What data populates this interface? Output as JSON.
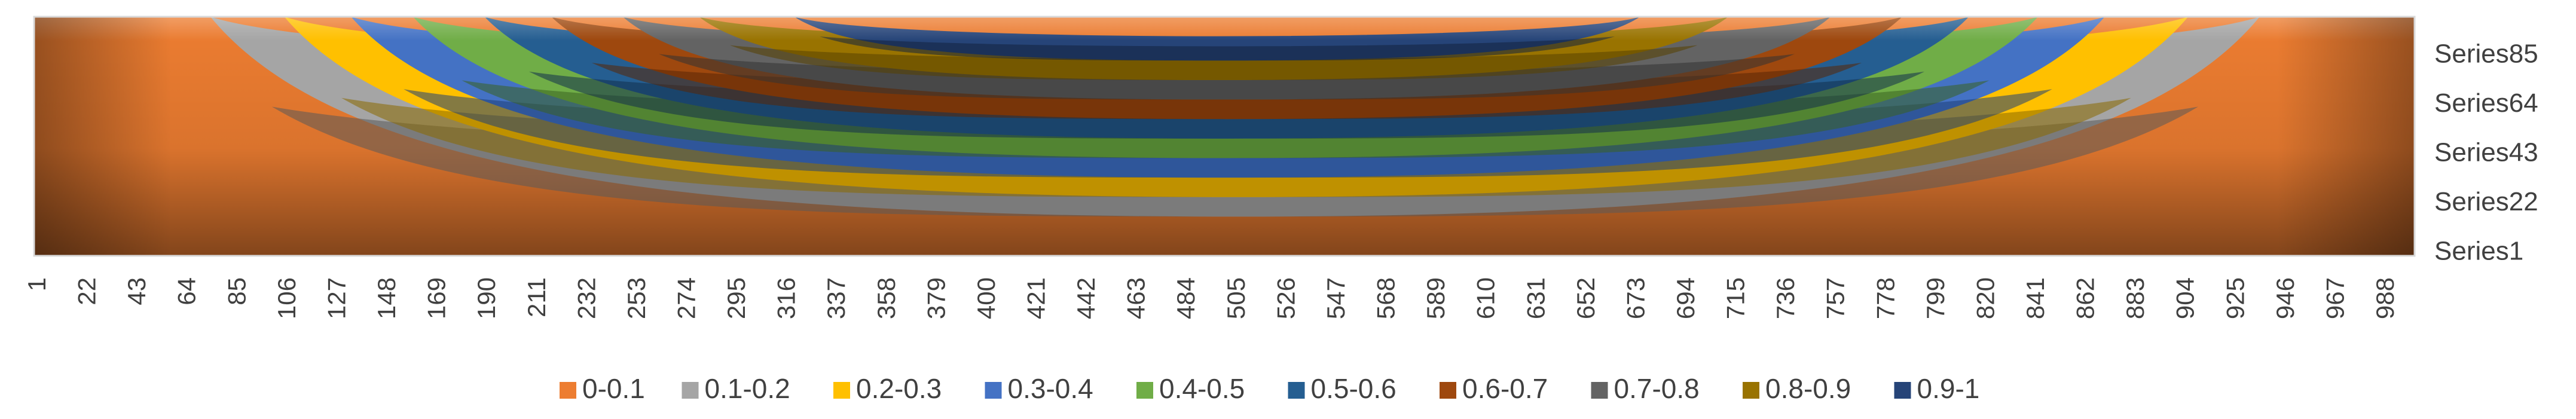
{
  "chart_data": {
    "type": "surface-contour",
    "x_tick_labels": [
      "1",
      "22",
      "43",
      "64",
      "85",
      "106",
      "127",
      "148",
      "169",
      "190",
      "211",
      "232",
      "253",
      "274",
      "295",
      "316",
      "337",
      "358",
      "379",
      "400",
      "421",
      "442",
      "463",
      "484",
      "505",
      "526",
      "547",
      "568",
      "589",
      "610",
      "631",
      "652",
      "673",
      "694",
      "715",
      "736",
      "757",
      "778",
      "799",
      "820",
      "841",
      "862",
      "883",
      "904",
      "925",
      "946",
      "967",
      "988"
    ],
    "y_tick_labels": [
      "Series85",
      "Series64",
      "Series43",
      "Series22",
      "Series1"
    ],
    "x_range": [
      1,
      1000
    ],
    "y_range": [
      1,
      100
    ],
    "bands": [
      {
        "name": "0-0.1",
        "color": "#ED7D31",
        "dark": "#8A4418"
      },
      {
        "name": "0.1-0.2",
        "color": "#A5A5A5",
        "dark": "#5A5A5A"
      },
      {
        "name": "0.2-0.3",
        "color": "#FFC000",
        "dark": "#8A6A00"
      },
      {
        "name": "0.3-0.4",
        "color": "#4472C4",
        "dark": "#1F3F78"
      },
      {
        "name": "0.4-0.5",
        "color": "#70AD47",
        "dark": "#3B6321"
      },
      {
        "name": "0.5-0.6",
        "color": "#255E91",
        "dark": "#12304D"
      },
      {
        "name": "0.6-0.7",
        "color": "#9E480E",
        "dark": "#5A2606"
      },
      {
        "name": "0.7-0.8",
        "color": "#636363",
        "dark": "#333333"
      },
      {
        "name": "0.8-0.9",
        "color": "#997300",
        "dark": "#574100"
      },
      {
        "name": "0.9-1",
        "color": "#264478",
        "dark": "#13223E"
      }
    ],
    "contours": [
      {
        "level": 0.1,
        "x_start": 75,
        "x_end": 935
      },
      {
        "level": 0.2,
        "x_start": 106,
        "x_end": 905
      },
      {
        "level": 0.3,
        "x_start": 134,
        "x_end": 870
      },
      {
        "level": 0.4,
        "x_start": 160,
        "x_end": 842
      },
      {
        "level": 0.5,
        "x_start": 190,
        "x_end": 813
      },
      {
        "level": 0.6,
        "x_start": 218,
        "x_end": 785
      },
      {
        "level": 0.7,
        "x_start": 248,
        "x_end": 755
      },
      {
        "level": 0.8,
        "x_start": 280,
        "x_end": 712
      },
      {
        "level": 0.9,
        "x_start": 320,
        "x_end": 675
      }
    ],
    "legend_position": "bottom"
  }
}
